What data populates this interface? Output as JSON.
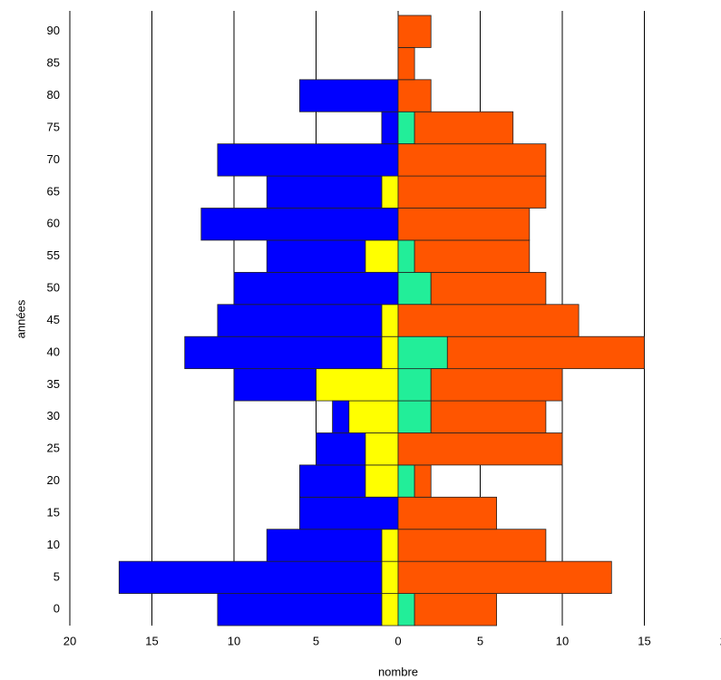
{
  "chart_data": {
    "type": "diverging_bar",
    "x_label": "nombre",
    "y_label": "années",
    "categories": [
      "0",
      "5",
      "10",
      "15",
      "20",
      "25",
      "30",
      "35",
      "40",
      "45",
      "50",
      "55",
      "60",
      "65",
      "70",
      "75",
      "80",
      "85",
      "90"
    ],
    "series": [
      {
        "color": "#ffff00",
        "values": [
          -1,
          -1,
          -1,
          0,
          -2,
          -2,
          -3,
          -5,
          -1,
          -1,
          0,
          -2,
          0,
          -1,
          0,
          0,
          0,
          0,
          0
        ]
      },
      {
        "color": "#0000ff",
        "values": [
          -10,
          -16,
          -7,
          -6,
          -4,
          -3,
          -1,
          -5,
          -12,
          -10,
          -10,
          -6,
          -12,
          -7,
          -11,
          -1,
          -6,
          0,
          0
        ]
      },
      {
        "color": "#22ee99",
        "values": [
          1,
          0,
          0,
          0,
          1,
          0,
          2,
          2,
          3,
          0,
          2,
          1,
          0,
          0,
          0,
          1,
          0,
          0,
          0
        ]
      },
      {
        "color": "#ff5500",
        "values": [
          5,
          13,
          9,
          6,
          1,
          10,
          7,
          8,
          12,
          11,
          7,
          7,
          8,
          9,
          9,
          6,
          2,
          1,
          2
        ]
      }
    ],
    "xlim": [
      -20,
      20
    ],
    "xticks": [
      {
        "value": -20,
        "label": "20"
      },
      {
        "value": -15,
        "label": "15"
      },
      {
        "value": -10,
        "label": "10"
      },
      {
        "value": -5,
        "label": "5"
      },
      0,
      5,
      10,
      15,
      20
    ],
    "grid": true
  }
}
